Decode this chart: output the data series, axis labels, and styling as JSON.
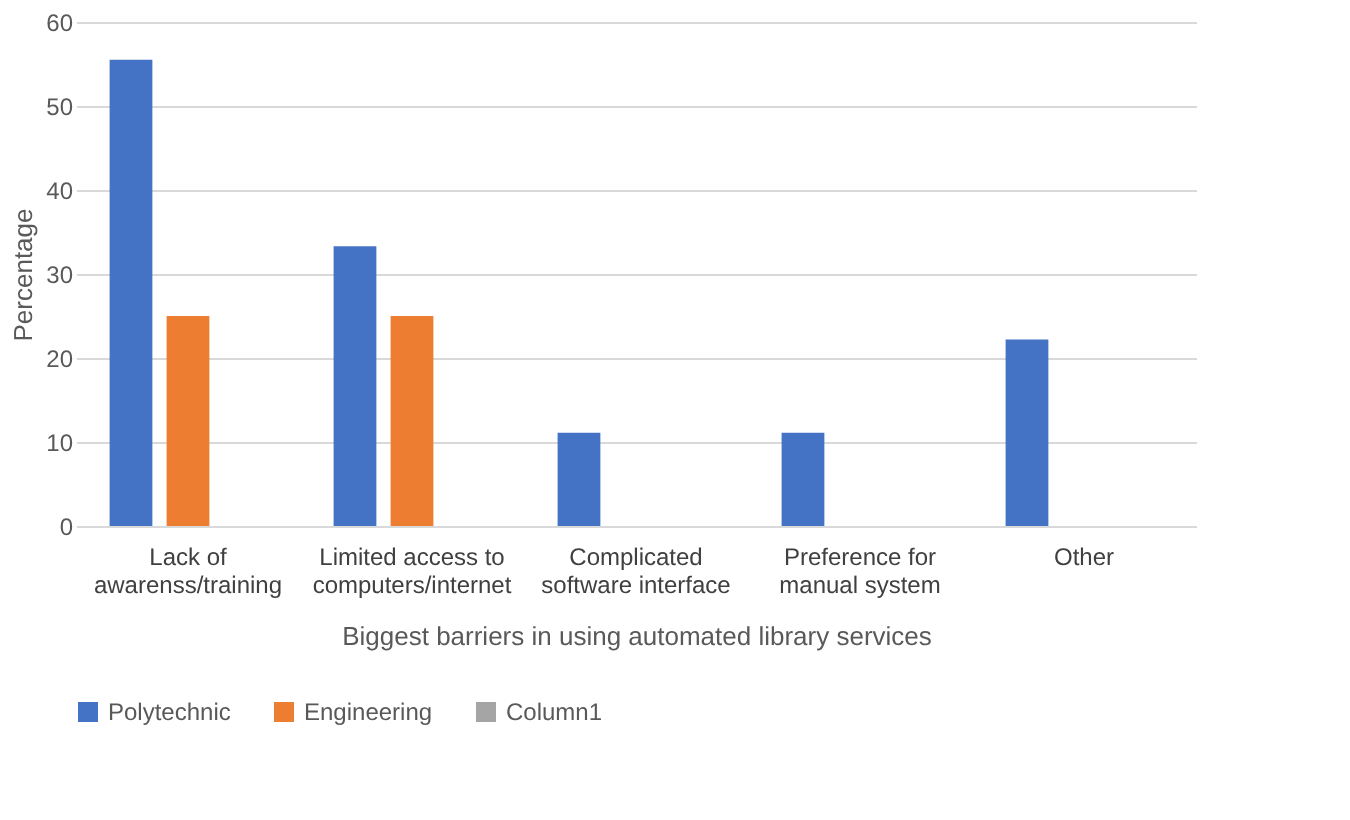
{
  "chart_data": {
    "type": "bar",
    "xlabel": "Biggest barriers in using automated library services",
    "ylabel": "Percentage",
    "categories": [
      "Lack of\nawarenss/training",
      "Limited access to\ncomputers/internet",
      "Complicated\nsoftware interface",
      "Preference for\nmanual system",
      "Other"
    ],
    "series": [
      {
        "name": "Polytechnic",
        "color": "#4472c4",
        "values": [
          55.5,
          33.3,
          11.1,
          11.1,
          22.2
        ]
      },
      {
        "name": "Engineering",
        "color": "#ed7d31",
        "values": [
          25,
          25,
          null,
          null,
          null
        ]
      },
      {
        "name": "Column1",
        "color": "#a5a5a5",
        "values": [
          null,
          null,
          null,
          null,
          null
        ]
      }
    ],
    "ylim": [
      0,
      60
    ],
    "yticks": [
      0,
      10,
      20,
      30,
      40,
      50,
      60
    ],
    "grid": "y",
    "legend": "bottom"
  }
}
